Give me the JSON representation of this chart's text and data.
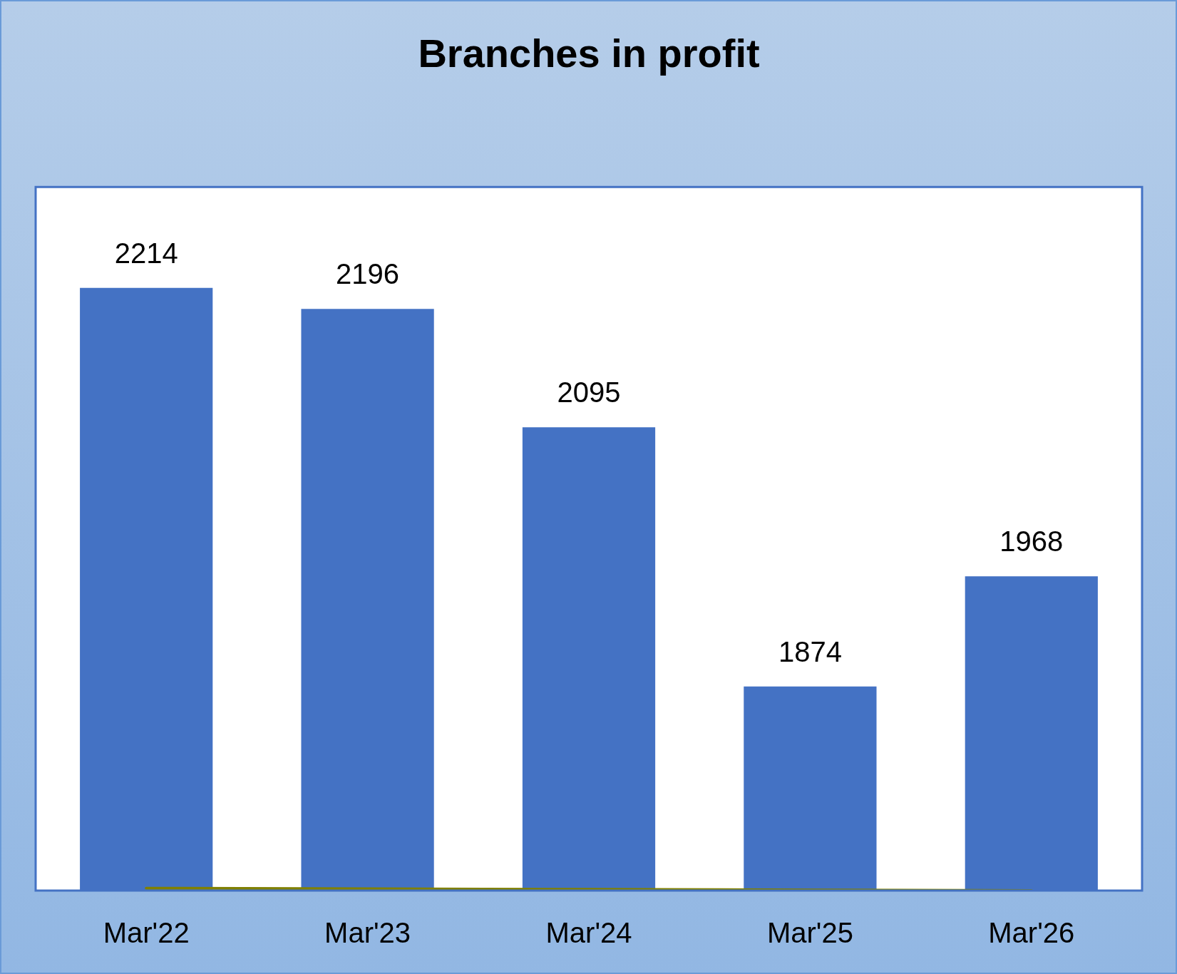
{
  "chart_data": {
    "type": "bar",
    "title": "Branches in profit",
    "categories": [
      "Mar'22",
      "Mar'23",
      "Mar'24",
      "Mar'25",
      "Mar'26"
    ],
    "series": [
      {
        "color": "#4472c4",
        "values": [
          2214,
          2196,
          2095,
          1874,
          1968
        ],
        "value_labels": [
          "2214",
          "2196",
          "2095",
          "1874",
          "1968"
        ]
      },
      {
        "type": "line",
        "color": "#808000",
        "values": [
          1702,
          1701.5,
          1701,
          1700.5,
          1700
        ]
      }
    ],
    "ylim": [
      1700,
      2300
    ],
    "tick_labels": "x"
  }
}
